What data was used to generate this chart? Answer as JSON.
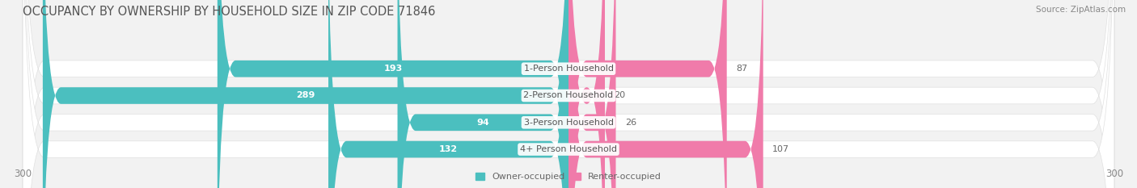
{
  "title": "OCCUPANCY BY OWNERSHIP BY HOUSEHOLD SIZE IN ZIP CODE 71846",
  "source": "Source: ZipAtlas.com",
  "categories": [
    "1-Person Household",
    "2-Person Household",
    "3-Person Household",
    "4+ Person Household"
  ],
  "owner_values": [
    193,
    289,
    94,
    132
  ],
  "renter_values": [
    87,
    20,
    26,
    107
  ],
  "owner_color": "#4BBFBF",
  "renter_color": "#F07BAA",
  "renter_color_light": "#F5B8CF",
  "background_color": "#f2f2f2",
  "row_bg_color": "#ffffff",
  "row_bg_edge": "#e0e0e0",
  "axis_max": 300,
  "legend_labels": [
    "Owner-occupied",
    "Renter-occupied"
  ],
  "title_fontsize": 10.5,
  "label_fontsize": 8,
  "tick_fontsize": 8.5,
  "value_fontsize": 8,
  "source_fontsize": 7.5
}
